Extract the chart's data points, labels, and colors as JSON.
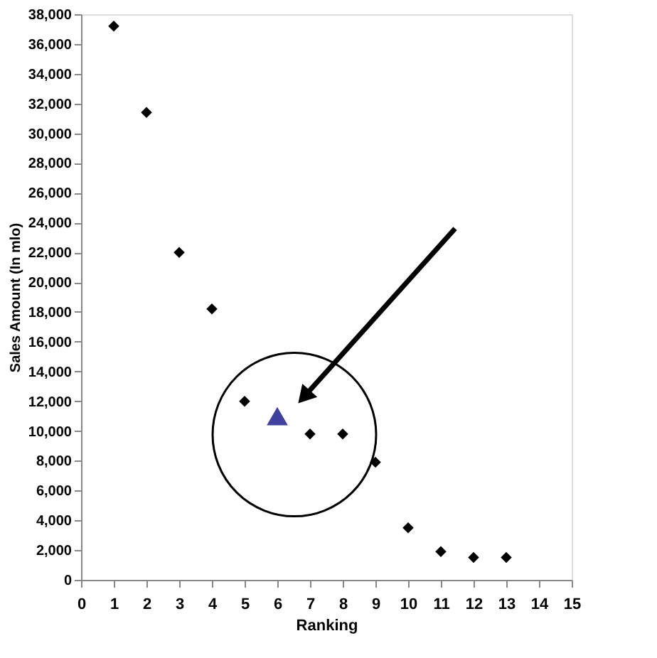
{
  "chart_data": {
    "type": "scatter",
    "xlabel": "Ranking",
    "ylabel": "Sales Amount (In mlo)",
    "xlim": [
      0,
      15
    ],
    "ylim": [
      0,
      38000
    ],
    "xticks": [
      0,
      1,
      2,
      3,
      4,
      5,
      6,
      7,
      8,
      9,
      10,
      11,
      12,
      13,
      14,
      15
    ],
    "yticks": [
      0,
      {
        "value": 2000,
        "label": "2,000"
      },
      {
        "value": 4000,
        "label": "4,000"
      },
      {
        "value": 6000,
        "label": "6,000"
      },
      {
        "value": 8000,
        "label": "8,000"
      },
      {
        "value": 10000,
        "label": "10,000"
      },
      {
        "value": 12000,
        "label": "12,000"
      },
      {
        "value": 14000,
        "label": "14,000"
      },
      {
        "value": 16000,
        "label": "16,000"
      },
      {
        "value": 18000,
        "label": "18,000"
      },
      {
        "value": 20000,
        "label": "20,000"
      },
      {
        "value": 22000,
        "label": "22,000"
      },
      {
        "value": 24000,
        "label": "24,000"
      },
      {
        "value": 26000,
        "label": "26,000"
      },
      {
        "value": 28000,
        "label": "28,000"
      },
      {
        "value": 30000,
        "label": "30,000"
      },
      {
        "value": 32000,
        "label": "32,000"
      },
      {
        "value": 34000,
        "label": "34,000"
      },
      {
        "value": 36000,
        "label": "36,000"
      },
      {
        "value": 38000,
        "label": "38,000"
      }
    ],
    "grid": false,
    "series": [
      {
        "color": "#000000",
        "marker": "diamond",
        "x": [
          1,
          2,
          3,
          4,
          5,
          7,
          8,
          9,
          10,
          11,
          12,
          13
        ],
        "values": [
          37200,
          31400,
          22000,
          18200,
          12000,
          9800,
          9800,
          7900,
          3500,
          1900,
          1500,
          1500
        ]
      },
      {
        "color": "#4040a0",
        "marker": "triangle",
        "x": [
          6
        ],
        "values": [
          11000
        ]
      }
    ]
  }
}
